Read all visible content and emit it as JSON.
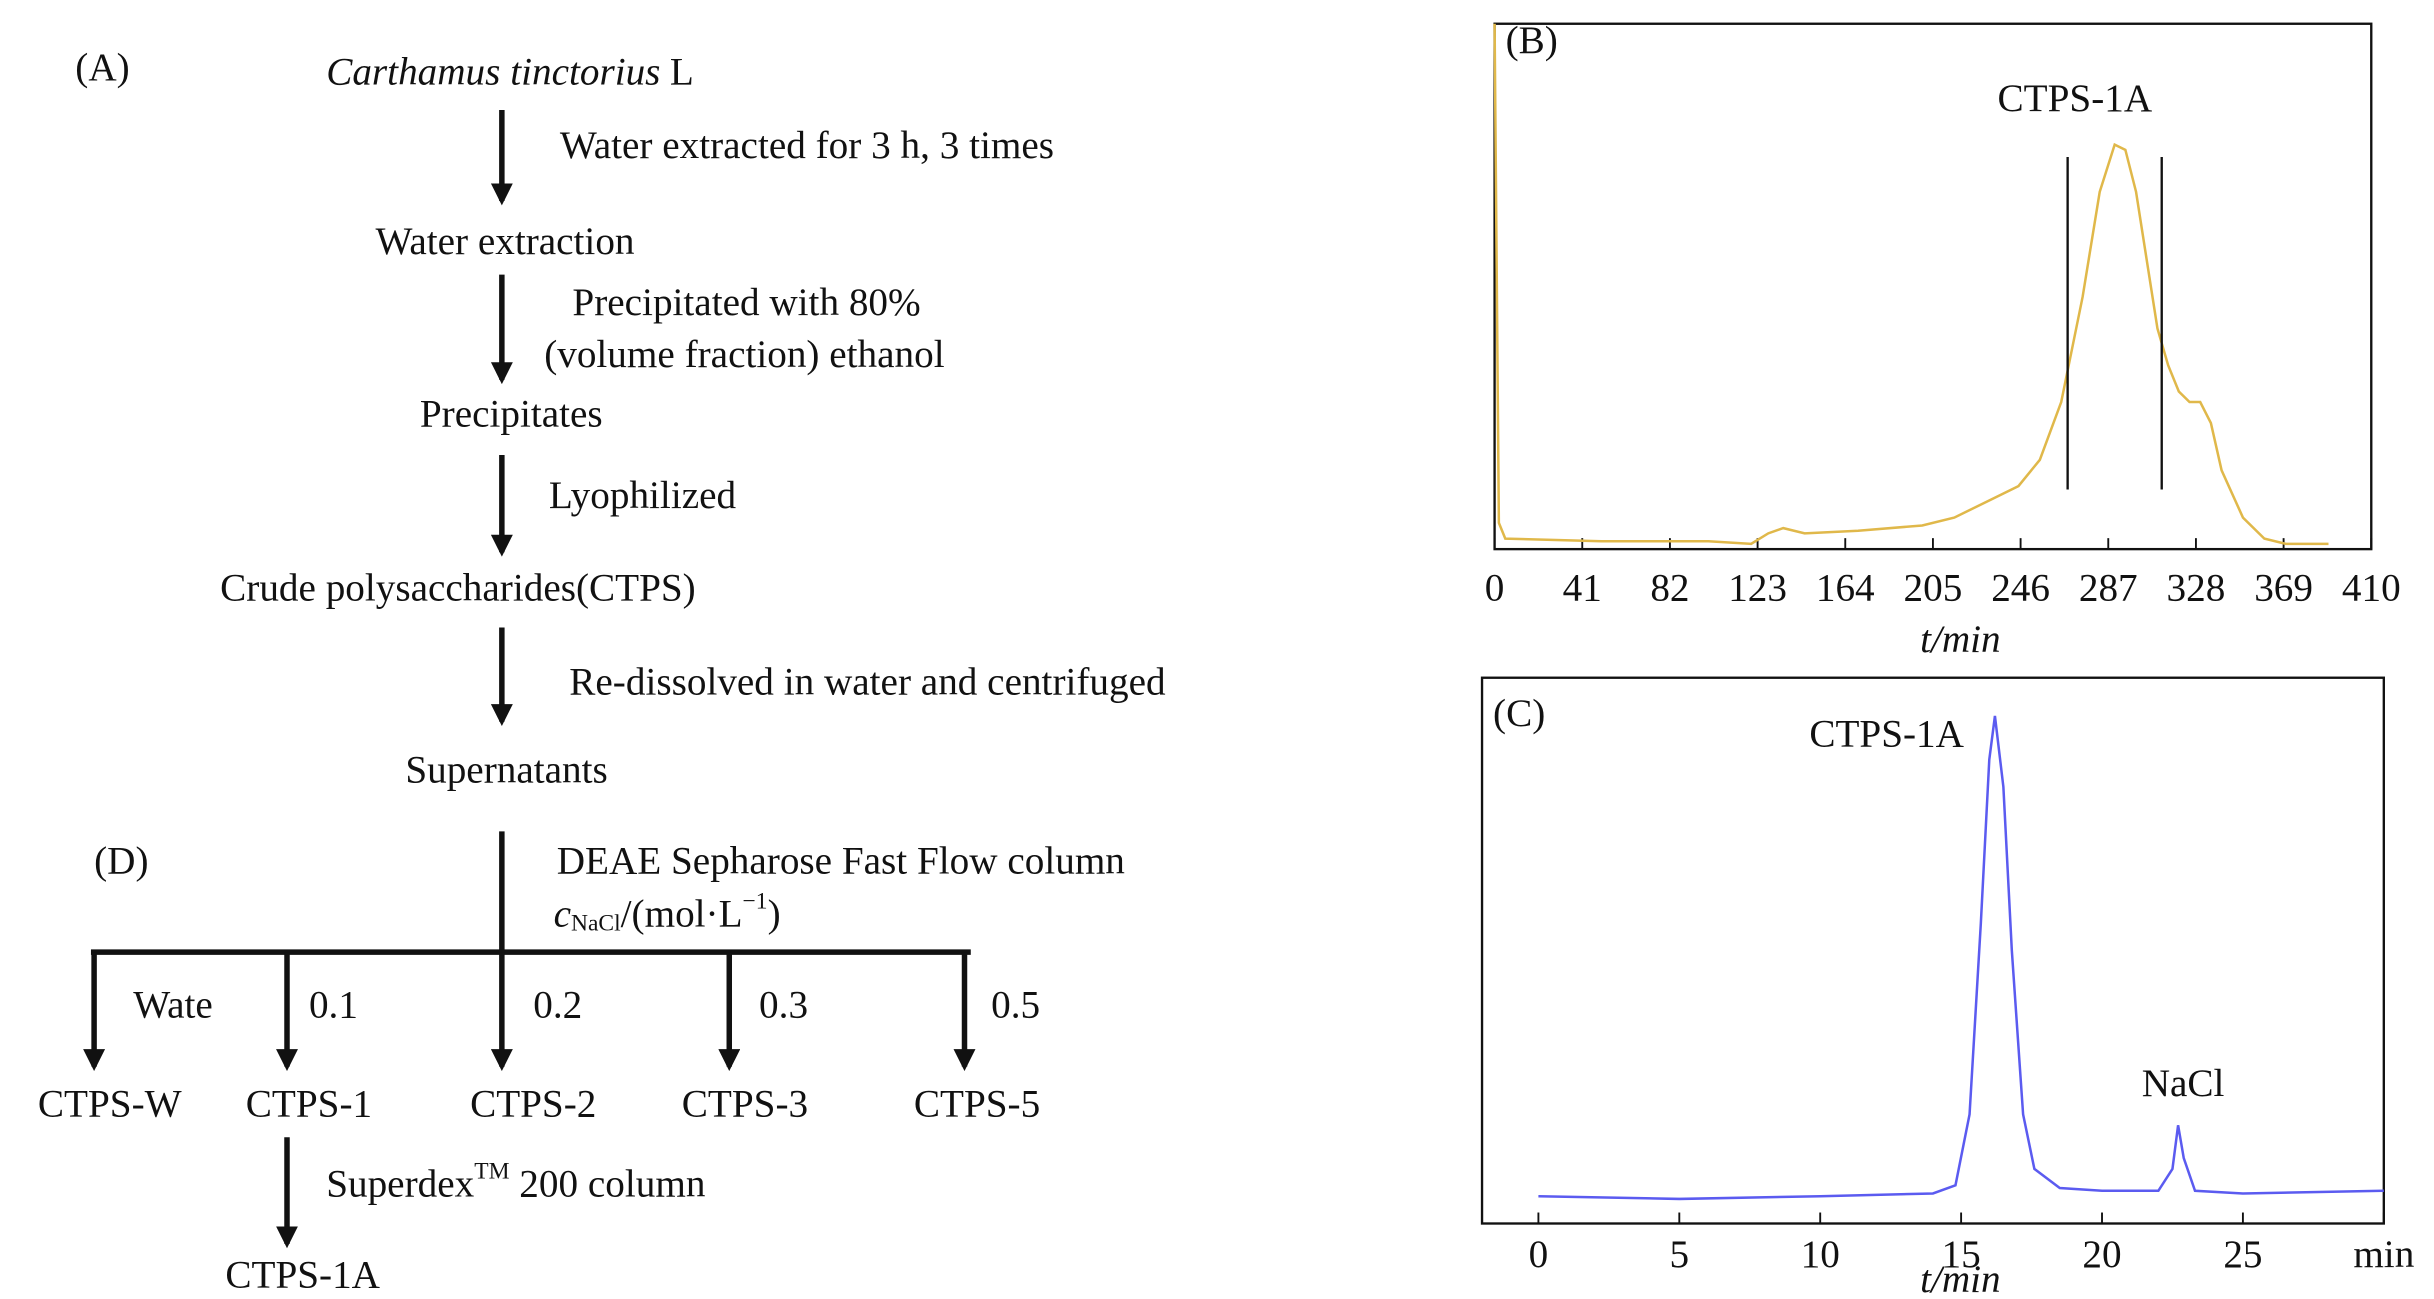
{
  "diagram": {
    "panel_a": "(A)",
    "species": "Carthamus tinctorius",
    "authority": "L",
    "nodes": [
      "Water extraction",
      "Precipitates",
      "Crude polysaccharides(CTPS)",
      "Supernatants"
    ],
    "steps": [
      "Water extracted for 3 h, 3 times",
      "Precipitated with 80%",
      "(volume fraction) ethanol",
      "Lyophilized",
      "Re-dissolved in water and centrifuged",
      "DEAE Sepharose Fast Flow column"
    ],
    "gradient": {
      "symbol": "c",
      "subscript": "NaCl",
      "unit": "/(mol·L",
      "superscript": "−1",
      "close": ")"
    },
    "panel_d": "(D)",
    "branch_labels": [
      "Wate",
      "0.1",
      "0.2",
      "0.3",
      "0.5"
    ],
    "fractions": [
      "CTPS-W",
      "CTPS-1",
      "CTPS-2",
      "CTPS-3",
      "CTPS-5"
    ],
    "column": {
      "name": "Superdex",
      "superscript": "TM",
      "rest": " 200 column"
    },
    "product": "CTPS-1A"
  },
  "chart_data": [
    {
      "type": "line",
      "panel": "(B)",
      "xlabel": "t/min",
      "color": "#e0b84a",
      "x": [
        0,
        2,
        5,
        50,
        100,
        120,
        128,
        135,
        145,
        170,
        200,
        215,
        230,
        245,
        255,
        265,
        275,
        283,
        290,
        295,
        300,
        305,
        310,
        315,
        320,
        325,
        330,
        335,
        340,
        350,
        360,
        370,
        390
      ],
      "values": [
        100,
        5,
        2,
        1.5,
        1.5,
        1,
        3,
        4,
        3,
        3.5,
        4.5,
        6,
        9,
        12,
        17,
        28,
        48,
        68,
        77,
        76,
        68,
        55,
        42,
        35,
        30,
        28,
        28,
        24,
        15,
        6,
        2,
        1,
        1
      ],
      "fraction_lines": [
        268,
        312
      ],
      "annotations": [
        "CTPS-1A"
      ],
      "xlim": [
        0,
        410
      ],
      "xticks": [
        0,
        41,
        82,
        123,
        164,
        205,
        246,
        287,
        328,
        369,
        410
      ],
      "ylim": [
        0,
        100
      ]
    },
    {
      "type": "line",
      "panel": "(C)",
      "xlabel": "t/min",
      "color": "#5b5bf0",
      "x": [
        0,
        5,
        10,
        14,
        14.8,
        15.3,
        15.7,
        16.0,
        16.2,
        16.5,
        16.8,
        17.2,
        17.6,
        18.5,
        20,
        22,
        22.5,
        22.7,
        22.9,
        23.3,
        25,
        30
      ],
      "values": [
        5,
        4.5,
        5,
        5.5,
        7,
        20,
        55,
        85,
        93,
        80,
        50,
        20,
        10,
        6.5,
        6,
        6,
        10,
        18,
        12,
        6,
        5.5,
        6
      ],
      "annotations": [
        "CTPS-1A",
        "NaCl"
      ],
      "xlim": [
        -2,
        30
      ],
      "xticks": [
        0,
        5,
        10,
        15,
        20,
        25,
        {
          "value": 30,
          "label": "min"
        }
      ],
      "ylim": [
        0,
        100
      ]
    }
  ]
}
